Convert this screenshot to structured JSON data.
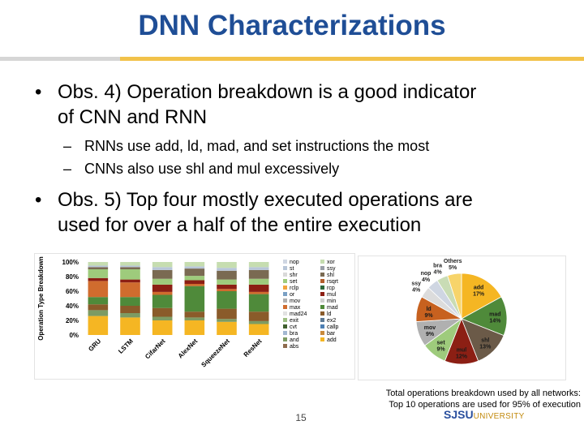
{
  "slide": {
    "title": "DNN Characterizations",
    "bullets": [
      {
        "text_line1": "Obs. 4) Operation breakdown is a good indicator",
        "text_line2": "of CNN and RNN",
        "subs": [
          "RNNs use add, ld, mad, and set instructions the most",
          "CNNs also use shl and mul excessively"
        ]
      },
      {
        "text_line1": "Obs. 5) Top four mostly executed operations are",
        "text_line2": "used for over a half of the entire execution",
        "subs": []
      }
    ],
    "caption_line1": "Total operations breakdown used by all networks:",
    "caption_line2": "Top 10 operations are used for 95% of execution",
    "page_number": "15",
    "logo_main": "SJSU",
    "logo_sub": "UNIVERSITY"
  },
  "chart_data": [
    {
      "type": "bar",
      "stacked": true,
      "ylabel": "Operation Type Breakdown",
      "yticks": [
        "0%",
        "20%",
        "40%",
        "60%",
        "80%",
        "100%"
      ],
      "ylim": [
        0,
        100
      ],
      "categories": [
        "GRU",
        "LSTM",
        "CifarNet",
        "AlexNet",
        "SqueezeNet",
        "ResNet"
      ],
      "legend_items": [
        {
          "label": "nop",
          "color": "#cfd6e2"
        },
        {
          "label": "xor",
          "color": "#c6ddb0"
        },
        {
          "label": "st",
          "color": "#b8c6d8"
        },
        {
          "label": "ssy",
          "color": "#9aa0a8"
        },
        {
          "label": "shr",
          "color": "#d9d9d9"
        },
        {
          "label": "shl",
          "color": "#7a6a52"
        },
        {
          "label": "set",
          "color": "#9ecb7c"
        },
        {
          "label": "rsqrt",
          "color": "#b35e2c"
        },
        {
          "label": "rclp",
          "color": "#f2a33c"
        },
        {
          "label": "rcp",
          "color": "#2e6a3c"
        },
        {
          "label": "or",
          "color": "#7aa0c4"
        },
        {
          "label": "mul",
          "color": "#8c1f14"
        },
        {
          "label": "mov",
          "color": "#b0b0b0"
        },
        {
          "label": "min",
          "color": "#cfcfcf"
        },
        {
          "label": "max",
          "color": "#d06c2e"
        },
        {
          "label": "mad",
          "color": "#4f8a3a"
        },
        {
          "label": "mad24",
          "color": "#e2e2e2"
        },
        {
          "label": "ld",
          "color": "#8a5b2a"
        },
        {
          "label": "exit",
          "color": "#9dbf82"
        },
        {
          "label": "ex2",
          "color": "#5c7a96"
        },
        {
          "label": "cvt",
          "color": "#3f5f2d"
        },
        {
          "label": "callp",
          "color": "#4d7fb3"
        },
        {
          "label": "bra",
          "color": "#a3b8d1"
        },
        {
          "label": "bar",
          "color": "#c98a3c"
        },
        {
          "label": "and",
          "color": "#7d9b63"
        },
        {
          "label": "add",
          "color": "#f5b623"
        },
        {
          "label": "abs",
          "color": "#8e6b4e"
        }
      ],
      "series": [
        {
          "name": "add",
          "color": "#f5b623",
          "values": [
            26,
            24,
            20,
            20,
            18,
            15
          ]
        },
        {
          "name": "and",
          "color": "#7d9b63",
          "values": [
            8,
            6,
            5,
            4,
            4,
            4
          ]
        },
        {
          "name": "ld",
          "color": "#8a5b2a",
          "values": [
            8,
            10,
            12,
            8,
            14,
            13
          ]
        },
        {
          "name": "mad",
          "color": "#4f8a3a",
          "values": [
            10,
            12,
            18,
            35,
            24,
            24
          ]
        },
        {
          "name": "max",
          "color": "#d06c2e",
          "values": [
            22,
            20,
            4,
            3,
            3,
            3
          ]
        },
        {
          "name": "mul",
          "color": "#8c1f14",
          "values": [
            4,
            4,
            10,
            5,
            6,
            10
          ]
        },
        {
          "name": "set",
          "color": "#9ecb7c",
          "values": [
            12,
            14,
            8,
            6,
            7,
            8
          ]
        },
        {
          "name": "shl",
          "color": "#7a6a52",
          "values": [
            3,
            3,
            12,
            10,
            12,
            12
          ]
        },
        {
          "name": "st",
          "color": "#b8c6d8",
          "values": [
            2,
            2,
            4,
            3,
            4,
            4
          ]
        },
        {
          "name": "xor",
          "color": "#c6ddb0",
          "values": [
            5,
            5,
            7,
            6,
            8,
            7
          ]
        }
      ]
    },
    {
      "type": "pie",
      "slices": [
        {
          "label": "add",
          "value": 17,
          "color": "#f5b623",
          "text": "add\n17%"
        },
        {
          "label": "mad",
          "value": 14,
          "color": "#4f8a3a",
          "text": "mad\n14%"
        },
        {
          "label": "shl",
          "value": 13,
          "color": "#6b5a48",
          "text": "shl\n13%"
        },
        {
          "label": "mul",
          "value": 12,
          "color": "#8c1f14",
          "text": "mul\n12%"
        },
        {
          "label": "set",
          "value": 9,
          "color": "#9ecb7c",
          "text": "set\n9%"
        },
        {
          "label": "mov",
          "value": 9,
          "color": "#b0b0b0",
          "text": "mov\n9%"
        },
        {
          "label": "ld",
          "value": 9,
          "color": "#c7611f",
          "text": "ld\n9%"
        },
        {
          "label": "ssy",
          "value": 4,
          "color": "#dcdcdc",
          "text": "ssy\n4%"
        },
        {
          "label": "nop",
          "value": 4,
          "color": "#cfd6e2",
          "text": "nop\n4%"
        },
        {
          "label": "bra",
          "value": 4,
          "color": "#c9dcb5",
          "text": "bra\n4%"
        },
        {
          "label": "Others",
          "value": 5,
          "color": "#f7d46a",
          "text": "Others\n5%"
        }
      ]
    }
  ]
}
